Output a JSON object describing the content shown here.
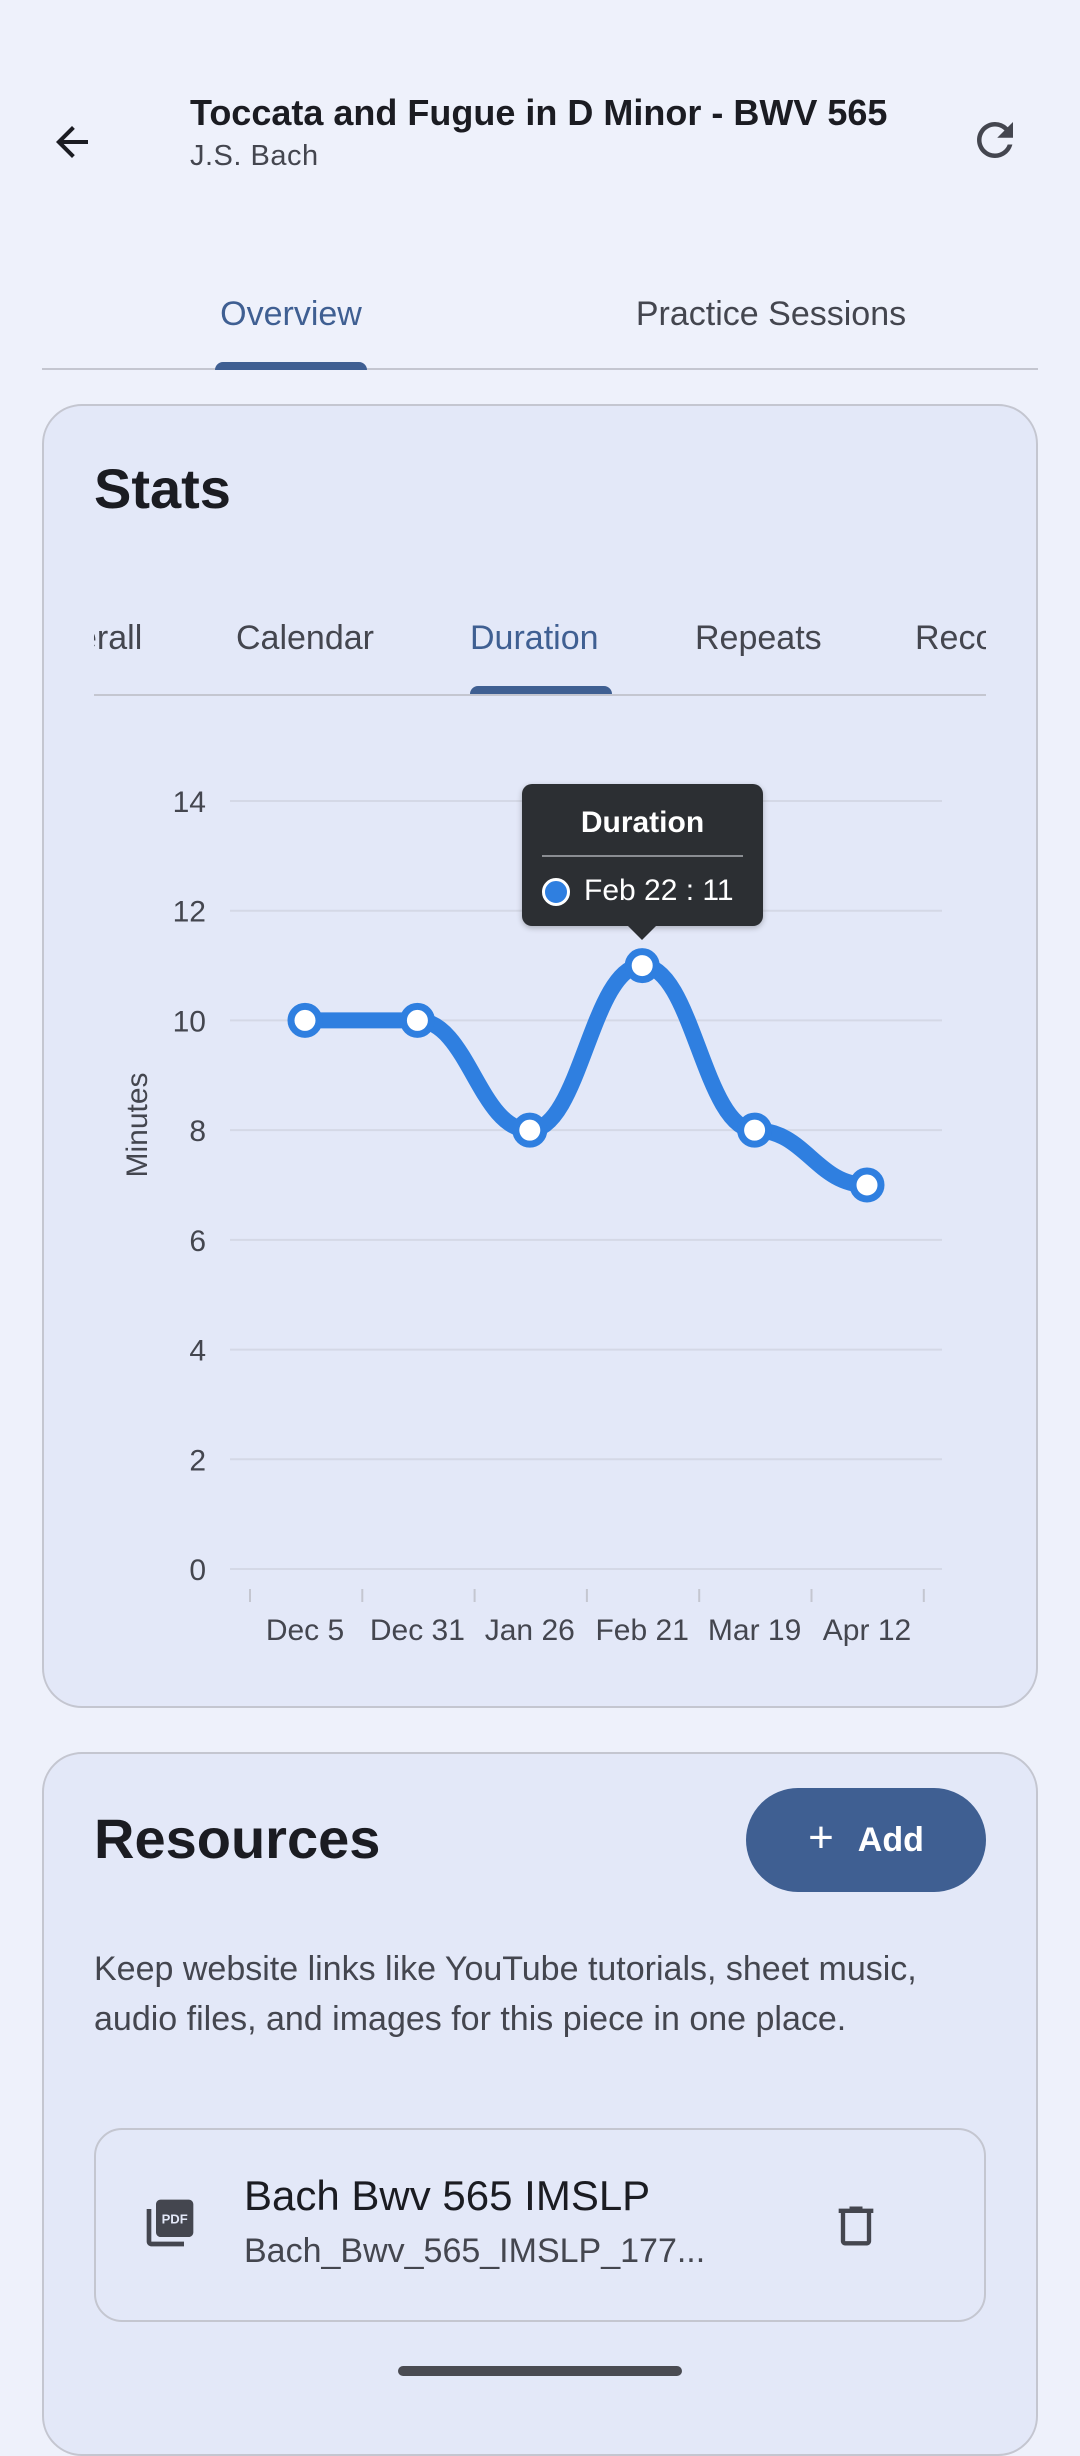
{
  "header": {
    "title": "Toccata and Fugue in D Minor - BWV 565",
    "composer": "J.S. Bach"
  },
  "main_tabs": [
    {
      "label": "Overview",
      "active": true
    },
    {
      "label": "Practice Sessions",
      "active": false
    }
  ],
  "stats": {
    "title": "Stats",
    "tabs": [
      {
        "label": "Overall",
        "visible_text": "erall",
        "active": false
      },
      {
        "label": "Calendar",
        "active": false
      },
      {
        "label": "Duration",
        "active": true
      },
      {
        "label": "Repeats",
        "active": false
      },
      {
        "label": "Records",
        "visible_text": "Reco",
        "active": false
      }
    ]
  },
  "chart_data": {
    "type": "line",
    "ylabel": "Minutes",
    "ylim": [
      0,
      14
    ],
    "yticks": [
      0,
      2,
      4,
      6,
      8,
      10,
      12,
      14
    ],
    "xticklabels": [
      "Dec 5",
      "Dec 31",
      "Jan 26",
      "Feb 21",
      "Mar 19",
      "Apr 12"
    ],
    "series": [
      {
        "color": "#2f7fe0",
        "points": [
          {
            "x": "Dec 5",
            "y": 10
          },
          {
            "x": "Dec 31",
            "y": 10
          },
          {
            "x": "Jan 26",
            "y": 8
          },
          {
            "x": "Feb 22",
            "y": 11
          },
          {
            "x": "Mar 19",
            "y": 8
          },
          {
            "x": "Apr 12",
            "y": 7
          }
        ]
      }
    ],
    "grid": true,
    "tooltip": {
      "title": "Duration",
      "text": "Feb 22 : 11"
    }
  },
  "resources": {
    "title": "Resources",
    "add_label": "Add",
    "description": "Keep website links like YouTube tutorials, sheet music, audio files, and images for this piece in one place.",
    "items": [
      {
        "name": "Bach Bwv 565 IMSLP",
        "file": "Bach_Bwv_565_IMSLP_177...",
        "icon": "pdf-icon"
      }
    ]
  },
  "colors": {
    "accent": "#3f5f92",
    "line": "#2f7fe0",
    "background": "#eef1fb",
    "card": "#e3e8f8"
  }
}
